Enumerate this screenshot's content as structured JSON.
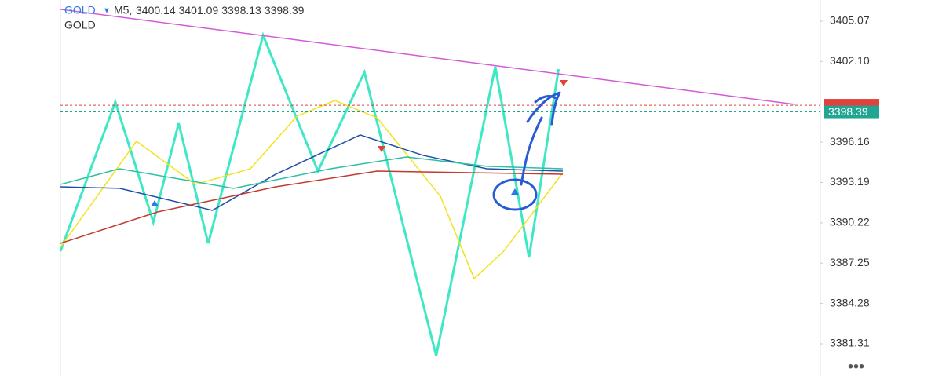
{
  "header": {
    "symbol": "GOLD",
    "timeframe": "M5,",
    "ohlc": [
      3400.14,
      3401.09,
      3398.13,
      3398.39
    ],
    "subtitle": "GOLD"
  },
  "chart_data": {
    "type": "line",
    "ylim": [
      3378.94,
      3406.63
    ],
    "xlim": [
      0,
      180
    ],
    "yticks": [
      3405.07,
      {
        "value": 3402.1,
        "label": "3402.10"
      },
      3396.16,
      3393.19,
      3390.22,
      3387.25,
      3384.28,
      3381.31
    ],
    "series": [
      {
        "name": "zigzag",
        "color": "#3ee8c4",
        "x": [
          0,
          13,
          22,
          28,
          35,
          48,
          61,
          72,
          89,
          103,
          111,
          118
        ],
        "values": [
          3388.13,
          3399.12,
          3390.27,
          3397.55,
          3388.71,
          3404.03,
          3394.03,
          3401.31,
          3380.44,
          3401.72,
          3387.67,
          3401.54
        ]
      },
      {
        "name": "ma-yellow",
        "color": "#f2e21b",
        "x": [
          0,
          18,
          32,
          45,
          56,
          65,
          75,
          90,
          98,
          105,
          119
        ],
        "values": [
          3388.42,
          3396.22,
          3393.05,
          3394.2,
          3398.07,
          3399.23,
          3397.96,
          3392.18,
          3386.11,
          3388.13,
          3393.91
        ]
      },
      {
        "name": "ma-navy",
        "color": "#1f4fa8",
        "x": [
          0,
          14,
          36,
          51,
          71,
          86,
          101,
          119
        ],
        "values": [
          3392.87,
          3392.76,
          3391.14,
          3393.8,
          3396.69,
          3395.18,
          3394.2,
          3394.03
        ]
      },
      {
        "name": "ma-teal",
        "color": "#2bbfa4",
        "x": [
          0,
          14,
          41,
          64,
          82,
          101,
          119
        ],
        "values": [
          3393.05,
          3394.2,
          3392.76,
          3394.2,
          3395.07,
          3394.38,
          3394.2
        ]
      },
      {
        "name": "ma-red",
        "color": "#c23a2e",
        "x": [
          0,
          23,
          51,
          75,
          97,
          119
        ],
        "values": [
          3388.71,
          3391.02,
          3392.87,
          3394.03,
          3393.91,
          3393.8
        ]
      },
      {
        "name": "trendline",
        "color": "#d35ad8",
        "x": [
          0,
          174
        ],
        "values": [
          3405.94,
          3398.94
        ]
      }
    ],
    "levels": [
      {
        "color": "#e0413a",
        "value": 3398.88
      },
      {
        "color": "#20a592",
        "value": 3398.39,
        "label": "3398.39"
      }
    ]
  }
}
